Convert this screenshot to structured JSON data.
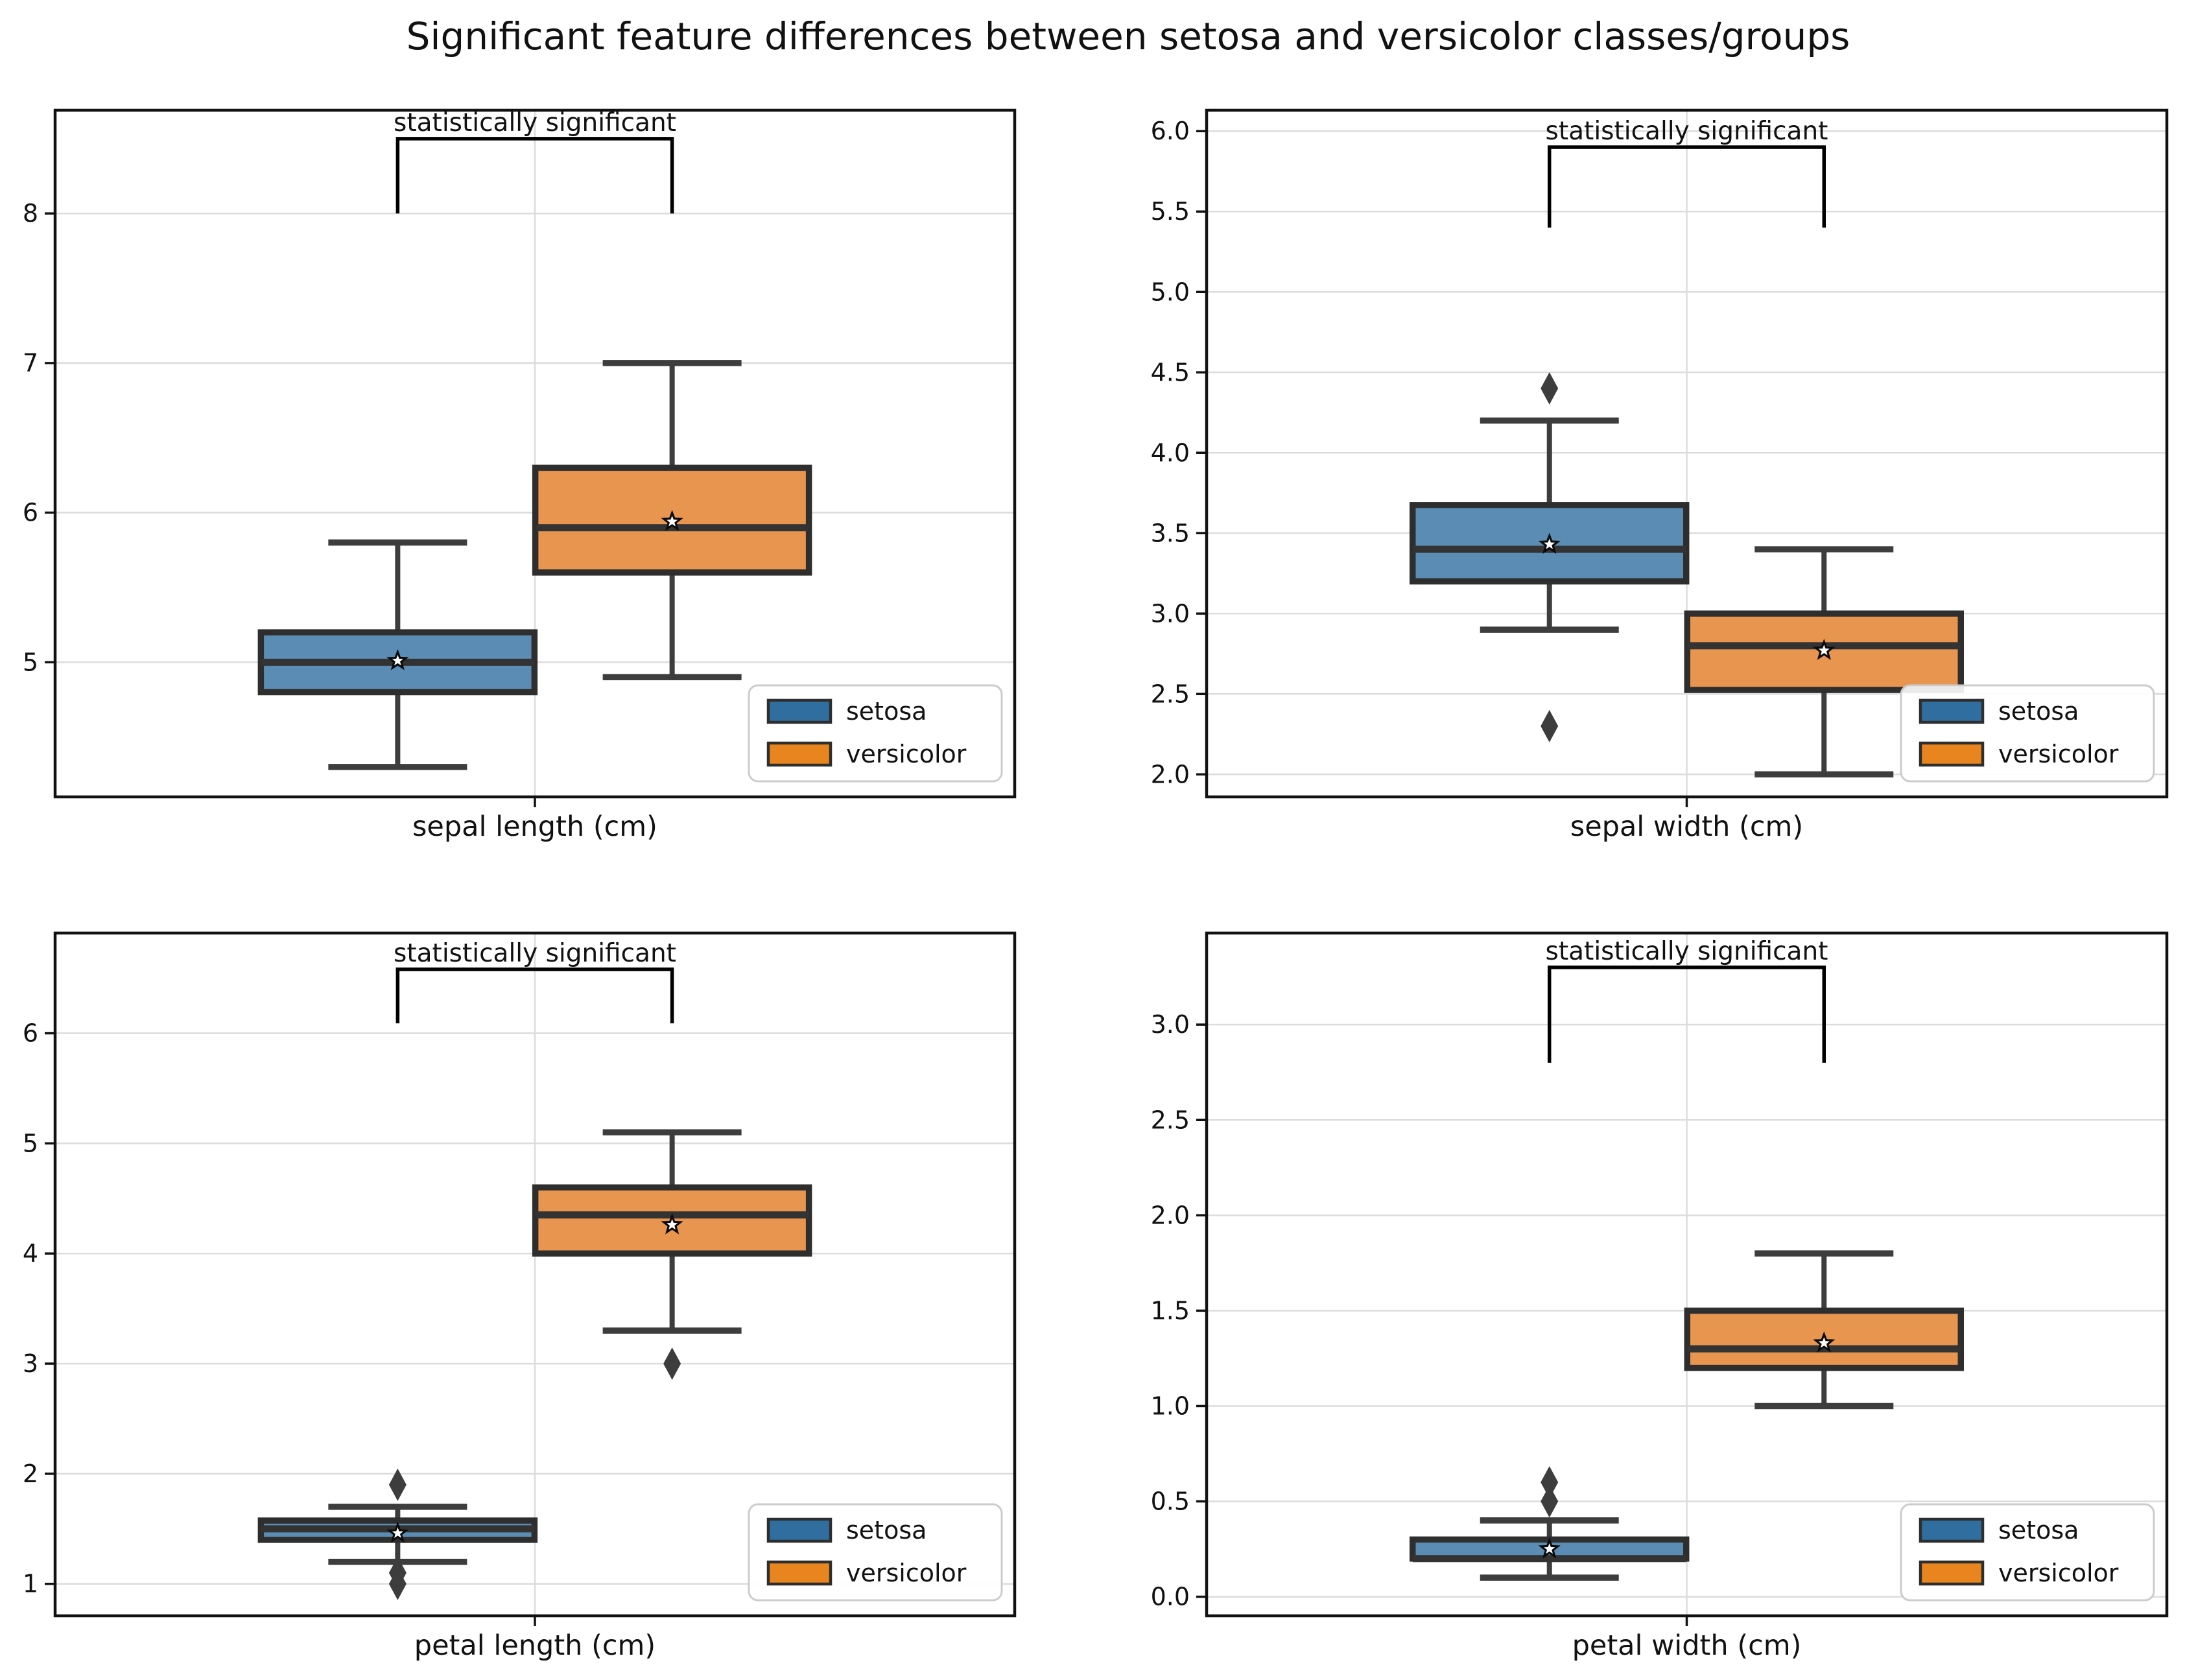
{
  "title": "Significant feature differences between setosa and versicolor classes/groups",
  "legend": {
    "position": "lower right",
    "items": [
      {
        "label": "setosa",
        "color": "#2F6E9E"
      },
      {
        "label": "versicolor",
        "color": "#E8851F"
      }
    ]
  },
  "colors": {
    "setosa_box_face": "#5B8DB4",
    "versicolor_box_face": "#E8954F",
    "box_edge": "#2E2E2E",
    "whisker": "#3D3D3D",
    "median": "#333333",
    "outlier": "#3D3D3D",
    "gridline": "#DCDCDC",
    "spine": "#111111",
    "bracket": "#000000",
    "legend_border": "#CCCCCC"
  },
  "chart_data": [
    {
      "type": "boxplot",
      "xlabel": "sepal length (cm)",
      "ylim": [
        4.1,
        8.69
      ],
      "grid": true,
      "yticks": [
        {
          "v": 5,
          "label": "5"
        },
        {
          "v": 6,
          "label": "6"
        },
        {
          "v": 7,
          "label": "7"
        },
        {
          "v": 8,
          "label": "8"
        }
      ],
      "annotation": {
        "label": "statistically significant",
        "y_from": 8.0,
        "y_to": 8.5
      },
      "groups": [
        {
          "name": "setosa",
          "color": "#5B8DB4",
          "whislo": 4.3,
          "q1": 4.8,
          "med": 5.0,
          "q3": 5.2,
          "whishi": 5.8,
          "mean": 5.01,
          "outliers": []
        },
        {
          "name": "versicolor",
          "color": "#E8954F",
          "whislo": 4.9,
          "q1": 5.6,
          "med": 5.9,
          "q3": 6.3,
          "whishi": 7.0,
          "mean": 5.94,
          "outliers": []
        }
      ]
    },
    {
      "type": "boxplot",
      "xlabel": "sepal width (cm)",
      "ylim": [
        1.86,
        6.13
      ],
      "grid": true,
      "yticks": [
        {
          "v": 2.0,
          "label": "2.0"
        },
        {
          "v": 2.5,
          "label": "2.5"
        },
        {
          "v": 3.0,
          "label": "3.0"
        },
        {
          "v": 3.5,
          "label": "3.5"
        },
        {
          "v": 4.0,
          "label": "4.0"
        },
        {
          "v": 4.5,
          "label": "4.5"
        },
        {
          "v": 5.0,
          "label": "5.0"
        },
        {
          "v": 5.5,
          "label": "5.5"
        },
        {
          "v": 6.0,
          "label": "6.0"
        }
      ],
      "annotation": {
        "label": "statistically significant",
        "y_from": 5.4,
        "y_to": 5.9
      },
      "groups": [
        {
          "name": "setosa",
          "color": "#5B8DB4",
          "whislo": 2.9,
          "q1": 3.2,
          "med": 3.4,
          "q3": 3.675,
          "whishi": 4.2,
          "mean": 3.43,
          "outliers": [
            4.4,
            2.3
          ]
        },
        {
          "name": "versicolor",
          "color": "#E8954F",
          "whislo": 2.0,
          "q1": 2.525,
          "med": 2.8,
          "q3": 3.0,
          "whishi": 3.4,
          "mean": 2.77,
          "outliers": []
        }
      ]
    },
    {
      "type": "boxplot",
      "xlabel": "petal length (cm)",
      "ylim": [
        0.71,
        6.91
      ],
      "grid": true,
      "yticks": [
        {
          "v": 1,
          "label": "1"
        },
        {
          "v": 2,
          "label": "2"
        },
        {
          "v": 3,
          "label": "3"
        },
        {
          "v": 4,
          "label": "4"
        },
        {
          "v": 5,
          "label": "5"
        },
        {
          "v": 6,
          "label": "6"
        }
      ],
      "annotation": {
        "label": "statistically significant",
        "y_from": 6.09,
        "y_to": 6.58
      },
      "groups": [
        {
          "name": "setosa",
          "color": "#5B8DB4",
          "whislo": 1.2,
          "q1": 1.4,
          "med": 1.5,
          "q3": 1.575,
          "whishi": 1.7,
          "mean": 1.46,
          "outliers": [
            1.9,
            1.1,
            1.0
          ]
        },
        {
          "name": "versicolor",
          "color": "#E8954F",
          "whislo": 3.3,
          "q1": 4.0,
          "med": 4.35,
          "q3": 4.6,
          "whishi": 5.1,
          "mean": 4.26,
          "outliers": [
            3.0
          ]
        }
      ]
    },
    {
      "type": "boxplot",
      "xlabel": "petal width (cm)",
      "ylim": [
        -0.1,
        3.48
      ],
      "grid": true,
      "yticks": [
        {
          "v": 0.0,
          "label": "0.0"
        },
        {
          "v": 0.5,
          "label": "0.5"
        },
        {
          "v": 1.0,
          "label": "1.0"
        },
        {
          "v": 1.5,
          "label": "1.5"
        },
        {
          "v": 2.0,
          "label": "2.0"
        },
        {
          "v": 2.5,
          "label": "2.5"
        },
        {
          "v": 3.0,
          "label": "3.0"
        }
      ],
      "annotation": {
        "label": "statistically significant",
        "y_from": 2.8,
        "y_to": 3.3
      },
      "groups": [
        {
          "name": "setosa",
          "color": "#5B8DB4",
          "whislo": 0.1,
          "q1": 0.2,
          "med": 0.2,
          "q3": 0.3,
          "whishi": 0.4,
          "mean": 0.25,
          "outliers": [
            0.5,
            0.6
          ]
        },
        {
          "name": "versicolor",
          "color": "#E8954F",
          "whislo": 1.0,
          "q1": 1.2,
          "med": 1.3,
          "q3": 1.5,
          "whishi": 1.8,
          "mean": 1.33,
          "outliers": []
        }
      ]
    }
  ]
}
